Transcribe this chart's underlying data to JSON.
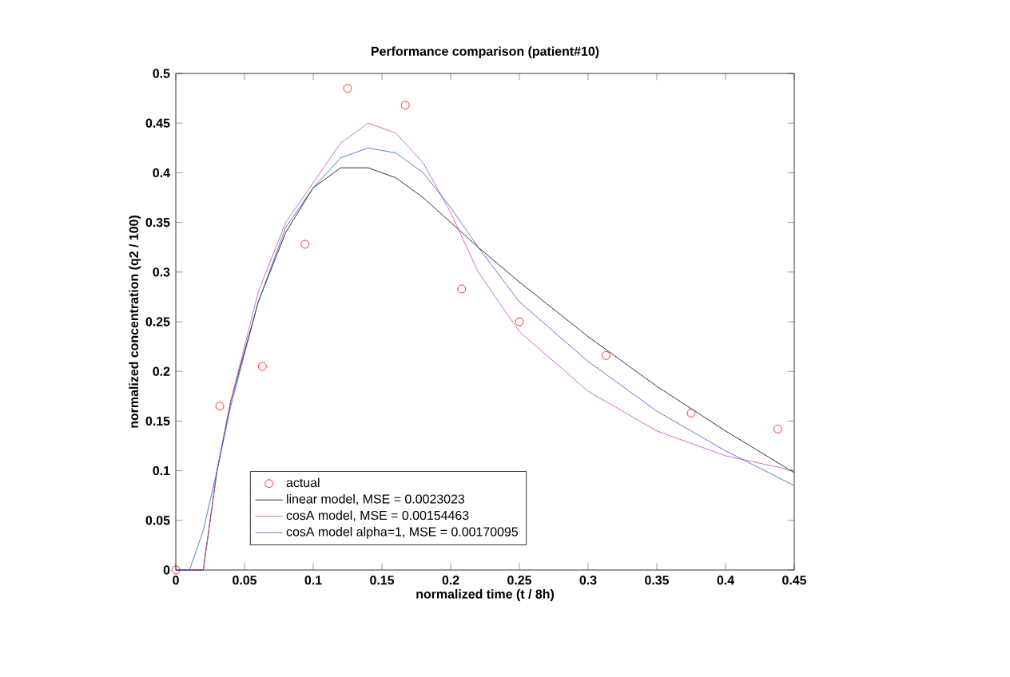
{
  "chart_data": {
    "type": "line",
    "title": "Performance comparison (patient#10)",
    "xlabel": "normalized time (t / 8h)",
    "ylabel": "normalized concentration (q2 / 100)",
    "xlim": [
      0,
      0.45
    ],
    "ylim": [
      0,
      0.5
    ],
    "xticks": [
      0,
      0.05,
      0.1,
      0.15,
      0.2,
      0.25,
      0.3,
      0.35,
      0.4,
      0.45
    ],
    "yticks": [
      0,
      0.05,
      0.1,
      0.15,
      0.2,
      0.25,
      0.3,
      0.35,
      0.4,
      0.45,
      0.5
    ],
    "grid": false,
    "legend": "bottom left",
    "series": [
      {
        "type": "scatter",
        "name": "actual",
        "color": "#ff0000",
        "marker": "circle",
        "x": [
          0,
          0.032,
          0.063,
          0.094,
          0.125,
          0.167,
          0.208,
          0.25,
          0.313,
          0.375,
          0.438
        ],
        "values": [
          0,
          0.165,
          0.205,
          0.328,
          0.485,
          0.468,
          0.283,
          0.25,
          0.216,
          0.158,
          0.142
        ]
      },
      {
        "name": "linear model, MSE = 0.0023023",
        "color": "#000000",
        "x": [
          0,
          0.01,
          0.02,
          0.03,
          0.04,
          0.06,
          0.08,
          0.1,
          0.12,
          0.14,
          0.16,
          0.18,
          0.2,
          0.22,
          0.25,
          0.3,
          0.35,
          0.4,
          0.45
        ],
        "values": [
          0,
          0,
          0,
          0.1,
          0.17,
          0.27,
          0.34,
          0.385,
          0.405,
          0.405,
          0.395,
          0.375,
          0.35,
          0.325,
          0.29,
          0.235,
          0.185,
          0.14,
          0.098
        ]
      },
      {
        "name": "cosA model, MSE = 0.00154463",
        "color": "#cc44bb",
        "x": [
          0,
          0.01,
          0.02,
          0.03,
          0.04,
          0.06,
          0.08,
          0.1,
          0.12,
          0.14,
          0.16,
          0.18,
          0.2,
          0.22,
          0.25,
          0.3,
          0.35,
          0.4,
          0.45
        ],
        "values": [
          0,
          0,
          0,
          0.1,
          0.17,
          0.28,
          0.35,
          0.39,
          0.43,
          0.45,
          0.44,
          0.41,
          0.36,
          0.3,
          0.24,
          0.18,
          0.14,
          0.115,
          0.1
        ]
      },
      {
        "name": "cosA model alpha=1, MSE = 0.00170095",
        "color": "#3355cc",
        "x": [
          0,
          0.01,
          0.02,
          0.03,
          0.04,
          0.06,
          0.08,
          0.1,
          0.12,
          0.14,
          0.16,
          0.18,
          0.2,
          0.22,
          0.25,
          0.3,
          0.35,
          0.4,
          0.45
        ],
        "values": [
          0,
          0,
          0.04,
          0.1,
          0.165,
          0.27,
          0.345,
          0.385,
          0.415,
          0.425,
          0.42,
          0.4,
          0.365,
          0.325,
          0.27,
          0.21,
          0.16,
          0.12,
          0.085
        ]
      }
    ]
  }
}
